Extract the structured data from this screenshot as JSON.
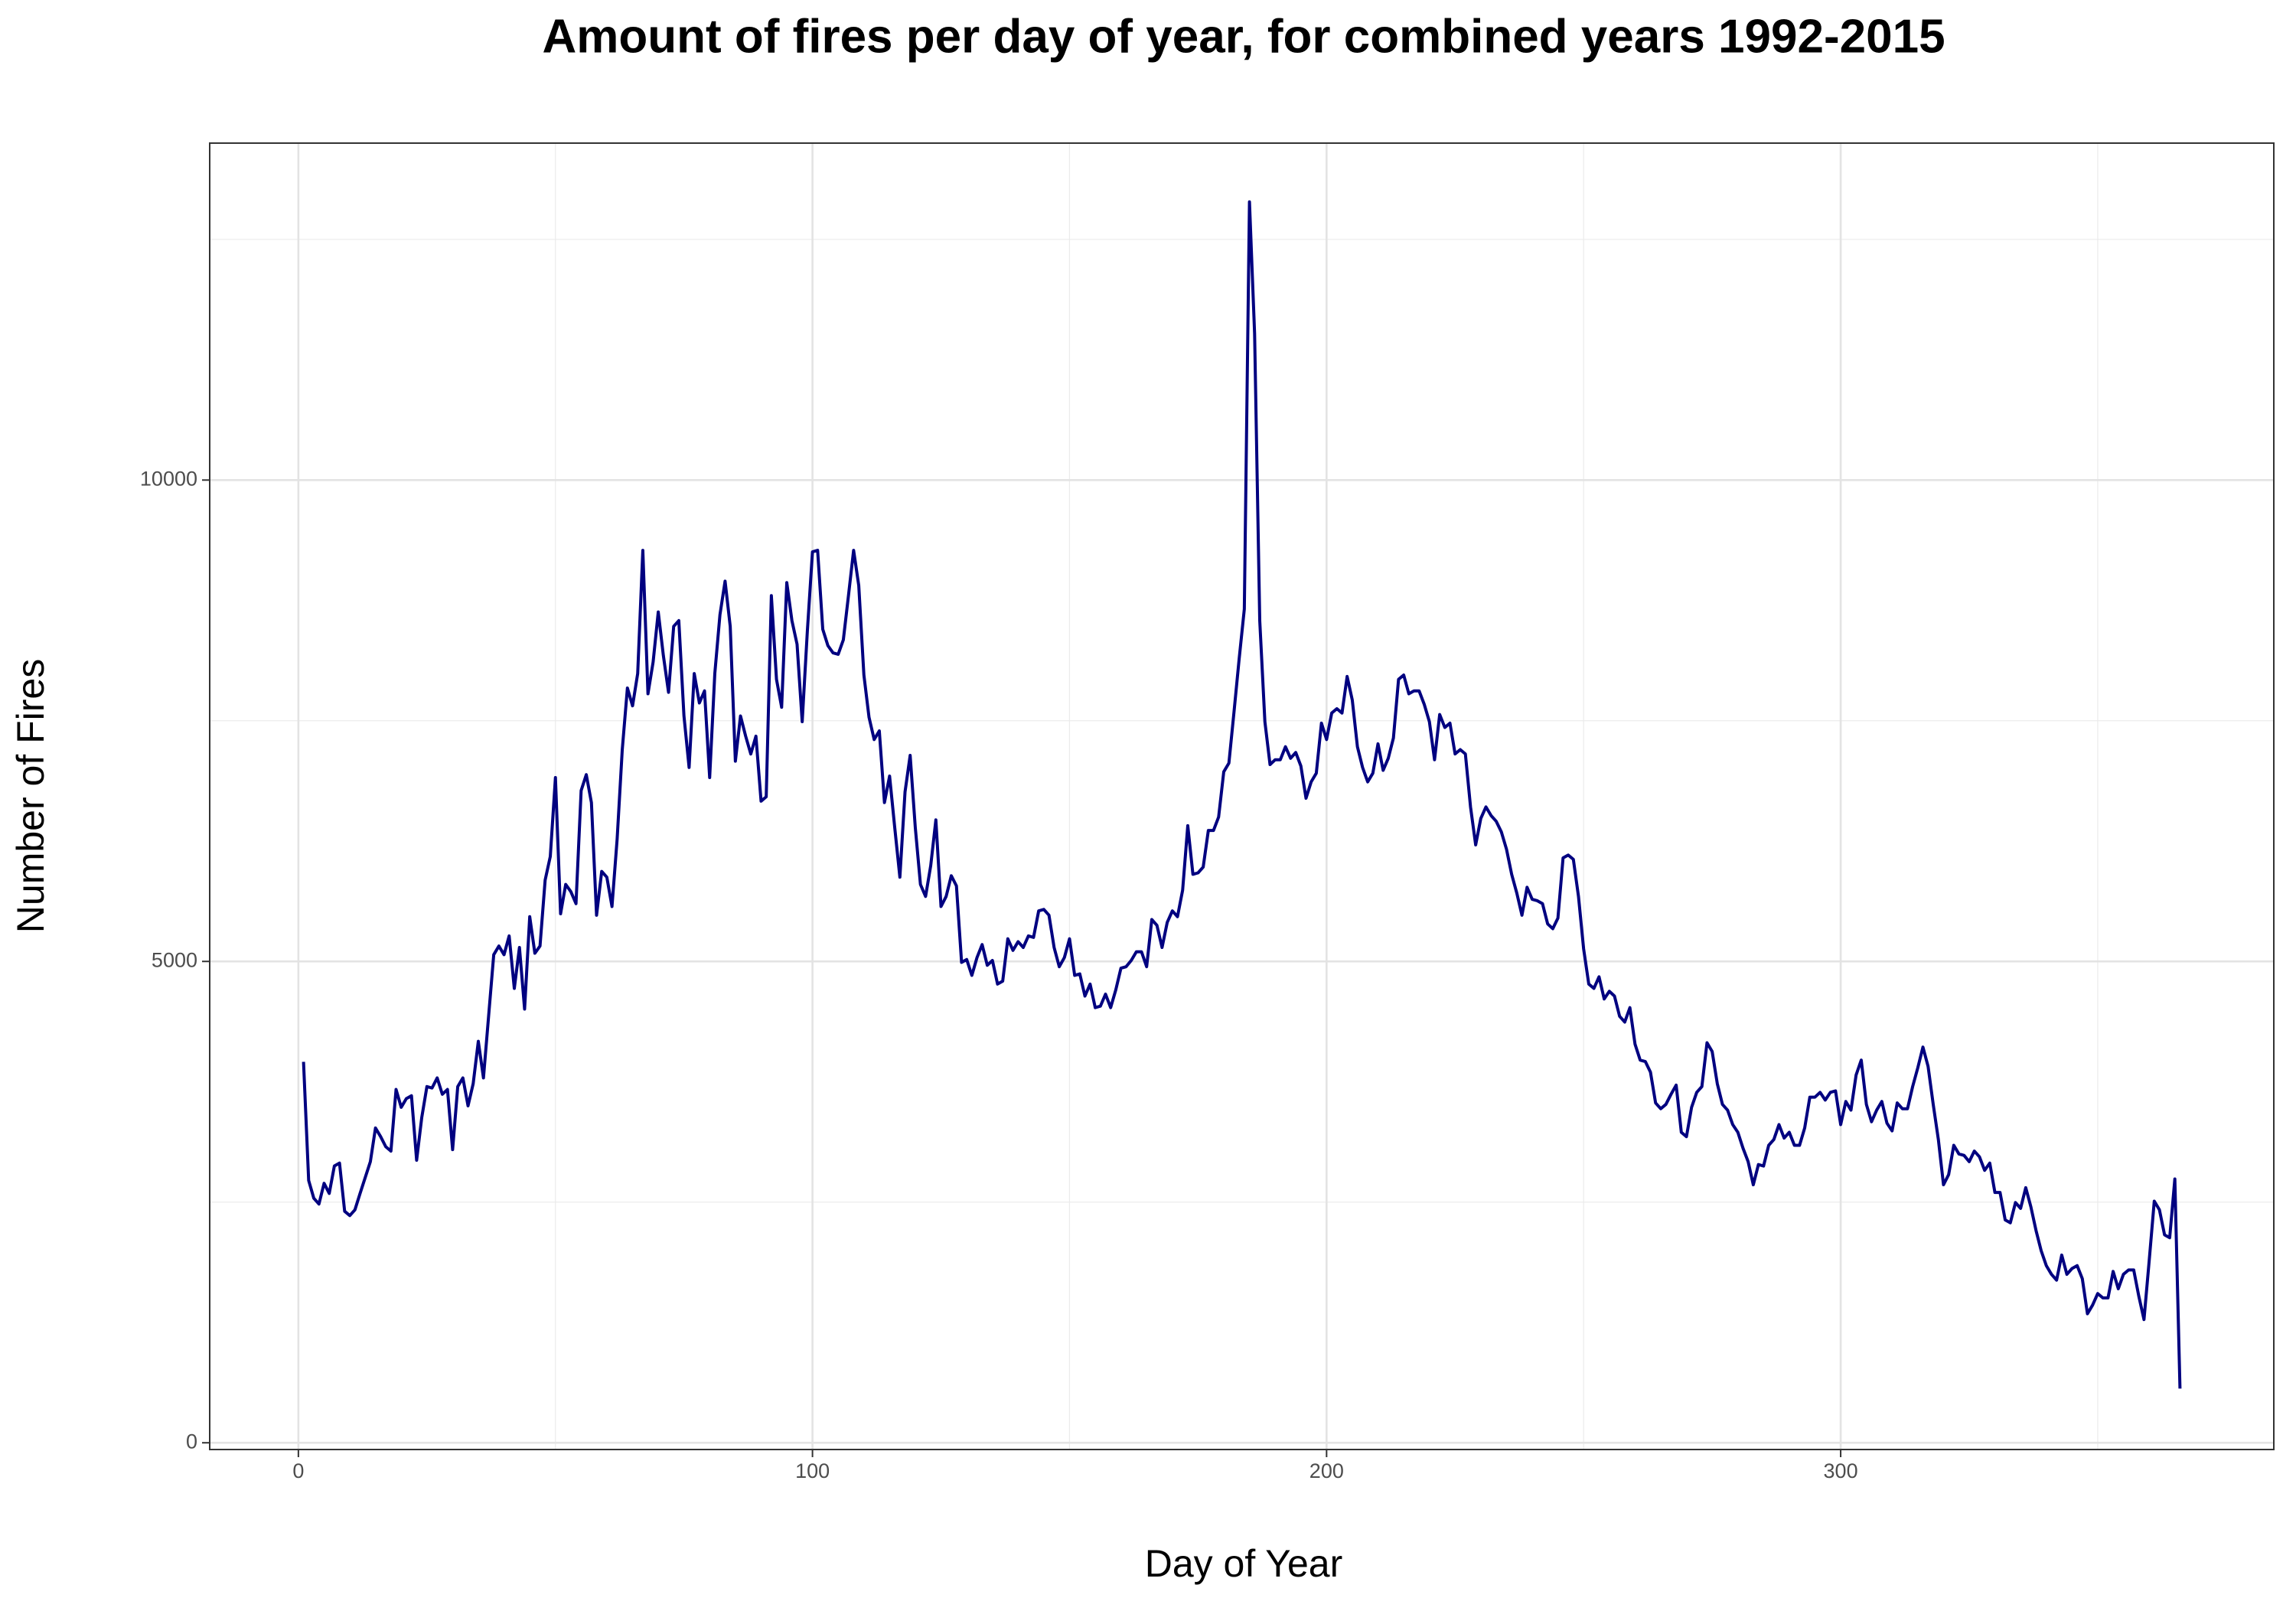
{
  "chart_data": {
    "type": "line",
    "title": "Amount of fires per day of year, for combined years 1992-2015",
    "x_label": "Day of Year",
    "y_label": "Number of Fires",
    "x": [
      1,
      2,
      3,
      4,
      5,
      6,
      7,
      8,
      9,
      10,
      11,
      12,
      13,
      14,
      15,
      16,
      17,
      18,
      19,
      20,
      21,
      22,
      23,
      24,
      25,
      26,
      27,
      28,
      29,
      30,
      31,
      32,
      33,
      34,
      35,
      36,
      37,
      38,
      39,
      40,
      41,
      42,
      43,
      44,
      45,
      46,
      47,
      48,
      49,
      50,
      51,
      52,
      53,
      54,
      55,
      56,
      57,
      58,
      59,
      60,
      61,
      62,
      63,
      64,
      65,
      66,
      67,
      68,
      69,
      70,
      71,
      72,
      73,
      74,
      75,
      76,
      77,
      78,
      79,
      80,
      81,
      82,
      83,
      84,
      85,
      86,
      87,
      88,
      89,
      90,
      91,
      92,
      93,
      94,
      95,
      96,
      97,
      98,
      99,
      100,
      101,
      102,
      103,
      104,
      105,
      106,
      107,
      108,
      109,
      110,
      111,
      112,
      113,
      114,
      115,
      116,
      117,
      118,
      119,
      120,
      121,
      122,
      123,
      124,
      125,
      126,
      127,
      128,
      129,
      130,
      131,
      132,
      133,
      134,
      135,
      136,
      137,
      138,
      139,
      140,
      141,
      142,
      143,
      144,
      145,
      146,
      147,
      148,
      149,
      150,
      151,
      152,
      153,
      154,
      155,
      156,
      157,
      158,
      159,
      160,
      161,
      162,
      163,
      164,
      165,
      166,
      167,
      168,
      169,
      170,
      171,
      172,
      173,
      174,
      175,
      176,
      177,
      178,
      179,
      180,
      181,
      182,
      183,
      184,
      185,
      186,
      187,
      188,
      189,
      190,
      191,
      192,
      193,
      194,
      195,
      196,
      197,
      198,
      199,
      200,
      201,
      202,
      203,
      204,
      205,
      206,
      207,
      208,
      209,
      210,
      211,
      212,
      213,
      214,
      215,
      216,
      217,
      218,
      219,
      220,
      221,
      222,
      223,
      224,
      225,
      226,
      227,
      228,
      229,
      230,
      231,
      232,
      233,
      234,
      235,
      236,
      237,
      238,
      239,
      240,
      241,
      242,
      243,
      244,
      245,
      246,
      247,
      248,
      249,
      250,
      251,
      252,
      253,
      254,
      255,
      256,
      257,
      258,
      259,
      260,
      261,
      262,
      263,
      264,
      265,
      266,
      267,
      268,
      269,
      270,
      271,
      272,
      273,
      274,
      275,
      276,
      277,
      278,
      279,
      280,
      281,
      282,
      283,
      284,
      285,
      286,
      287,
      288,
      289,
      290,
      291,
      292,
      293,
      294,
      295,
      296,
      297,
      298,
      299,
      300,
      301,
      302,
      303,
      304,
      305,
      306,
      307,
      308,
      309,
      310,
      311,
      312,
      313,
      314,
      315,
      316,
      317,
      318,
      319,
      320,
      321,
      322,
      323,
      324,
      325,
      326,
      327,
      328,
      329,
      330,
      331,
      332,
      333,
      334,
      335,
      336,
      337,
      338,
      339,
      340,
      341,
      342,
      343,
      344,
      345,
      346,
      347,
      348,
      349,
      350,
      351,
      352,
      353,
      354,
      355,
      356,
      357,
      358,
      359,
      360,
      361,
      362,
      363,
      364,
      365,
      366
    ],
    "series": [
      {
        "color": "#000080",
        "values": [
          3957,
          2725,
          2540,
          2480,
          2695,
          2590,
          2875,
          2905,
          2405,
          2360,
          2420,
          2590,
          2755,
          2920,
          3270,
          3180,
          3075,
          3030,
          3670,
          3485,
          3575,
          3605,
          2935,
          3380,
          3700,
          3685,
          3790,
          3620,
          3670,
          3045,
          3700,
          3790,
          3500,
          3730,
          4170,
          3790,
          4430,
          5070,
          5160,
          5070,
          5265,
          4720,
          5145,
          4505,
          5465,
          5085,
          5160,
          5845,
          6090,
          6910,
          5495,
          5800,
          5725,
          5600,
          6775,
          6940,
          6650,
          5480,
          5935,
          5875,
          5570,
          6270,
          7200,
          7840,
          7655,
          7990,
          9270,
          7780,
          8110,
          8630,
          8175,
          7795,
          8480,
          8540,
          7550,
          7015,
          7990,
          7685,
          7810,
          6910,
          7990,
          8600,
          8950,
          8480,
          7080,
          7550,
          7340,
          7155,
          7340,
          6665,
          6710,
          8800,
          7930,
          7640,
          8935,
          8540,
          8295,
          7490,
          8430,
          9255,
          9270,
          8450,
          8280,
          8205,
          8190,
          8340,
          8800,
          9270,
          8905,
          7975,
          7535,
          7305,
          7395,
          6650,
          6925,
          6390,
          5875,
          6760,
          7140,
          6390,
          5800,
          5675,
          5995,
          6470,
          5570,
          5675,
          5890,
          5785,
          4990,
          5020,
          4855,
          5040,
          5175,
          4960,
          5010,
          4765,
          4795,
          5235,
          5115,
          5205,
          5145,
          5265,
          5250,
          5525,
          5540,
          5480,
          5145,
          4945,
          5040,
          5235,
          4855,
          4870,
          4640,
          4765,
          4520,
          4535,
          4660,
          4520,
          4705,
          4930,
          4945,
          5010,
          5100,
          5100,
          4945,
          5435,
          5375,
          5145,
          5405,
          5525,
          5465,
          5740,
          6410,
          5905,
          5920,
          5980,
          6360,
          6360,
          6500,
          6970,
          7060,
          7595,
          8145,
          8660,
          12890,
          11520,
          8540,
          7490,
          7045,
          7095,
          7095,
          7230,
          7110,
          7170,
          7030,
          6695,
          6865,
          6955,
          7475,
          7305,
          7580,
          7625,
          7580,
          7960,
          7715,
          7230,
          7015,
          6865,
          6955,
          7260,
          6985,
          7110,
          7320,
          7930,
          7975,
          7780,
          7810,
          7810,
          7670,
          7490,
          7095,
          7565,
          7430,
          7475,
          7155,
          7200,
          7155,
          6605,
          6210,
          6485,
          6605,
          6515,
          6455,
          6345,
          6165,
          5905,
          5710,
          5480,
          5770,
          5645,
          5630,
          5600,
          5390,
          5340,
          5450,
          6075,
          6105,
          6060,
          5675,
          5130,
          4765,
          4720,
          4840,
          4610,
          4690,
          4640,
          4430,
          4370,
          4520,
          4140,
          3975,
          3960,
          3850,
          3530,
          3470,
          3515,
          3620,
          3715,
          3225,
          3180,
          3485,
          3640,
          3700,
          4155,
          4065,
          3730,
          3515,
          3455,
          3305,
          3225,
          3060,
          2920,
          2680,
          2890,
          2875,
          3090,
          3150,
          3305,
          3165,
          3225,
          3090,
          3090,
          3270,
          3590,
          3590,
          3640,
          3560,
          3640,
          3655,
          3305,
          3545,
          3455,
          3820,
          3975,
          3515,
          3335,
          3455,
          3545,
          3320,
          3240,
          3530,
          3470,
          3470,
          3700,
          3895,
          4110,
          3910,
          3515,
          3150,
          2680,
          2785,
          3090,
          3000,
          2985,
          2920,
          3030,
          2970,
          2830,
          2905,
          2600,
          2600,
          2315,
          2285,
          2495,
          2435,
          2650,
          2450,
          2205,
          1995,
          1840,
          1750,
          1690,
          1950,
          1750,
          1810,
          1840,
          1705,
          1340,
          1430,
          1550,
          1505,
          1505,
          1780,
          1600,
          1750,
          1795,
          1795,
          1520,
          1280,
          1885,
          2510,
          2420,
          2160,
          2130,
          2740,
          563
        ]
      }
    ],
    "xlim": [
      -17.25,
      384.25
    ],
    "ylim": [
      -70,
      13500
    ],
    "xticks": [
      0,
      100,
      200,
      300
    ],
    "yticks": [
      0,
      5000,
      10000
    ],
    "minor_xticks": [
      50,
      150,
      250,
      350
    ],
    "minor_yticks": [
      2500,
      7500,
      12500
    ],
    "grid": true
  }
}
